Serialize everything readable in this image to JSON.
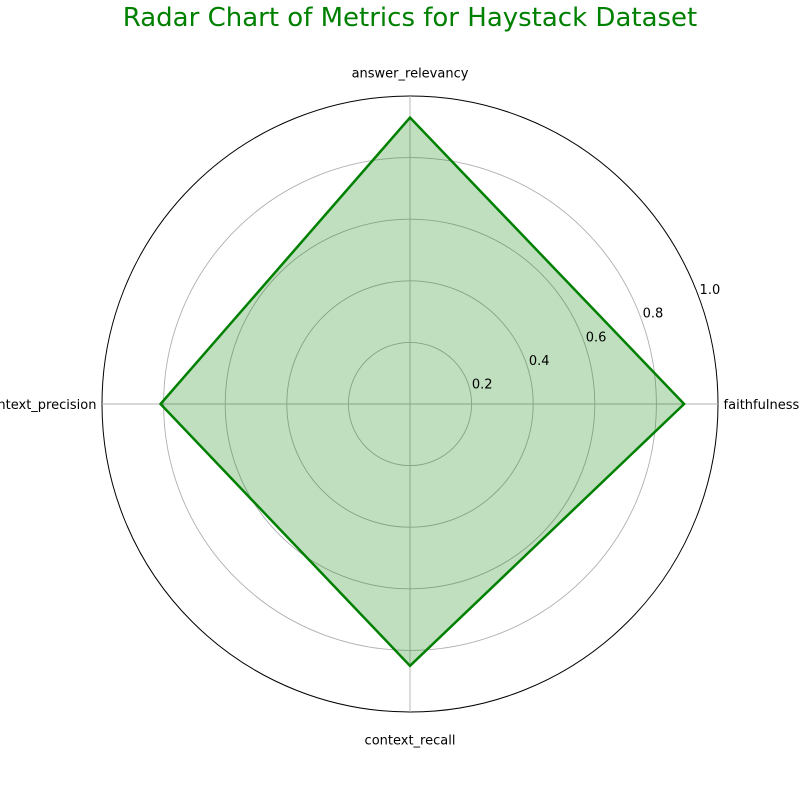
{
  "chart_data": {
    "type": "radar",
    "title": "Radar Chart of Metrics for Haystack Dataset",
    "categories": [
      "faithfulness",
      "answer_relevancy",
      "context_precision",
      "context_recall"
    ],
    "values": [
      0.89,
      0.93,
      0.81,
      0.85
    ],
    "rlim": [
      0,
      1.0
    ],
    "rticks": [
      "0.2",
      "0.4",
      "0.6",
      "0.8",
      "1.0"
    ],
    "grid": true,
    "colors": {
      "line": "#008000",
      "fill": "#008000",
      "title": "#008000",
      "grid": "#b0b0b0"
    }
  }
}
